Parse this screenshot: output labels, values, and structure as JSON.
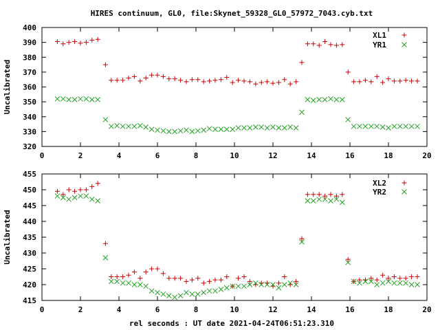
{
  "title": "HIRES continuum, GL0, file:Skynet_59328_GL0_57972_7043.cyb.txt",
  "xlabel": "rel seconds : UT date 2021-04-24T06:51:23.310",
  "colors": {
    "red": "#cc0000",
    "green": "#22a022",
    "axis": "#000000"
  },
  "chart_data": [
    {
      "type": "scatter",
      "ylabel": "Uncalibrated",
      "xlim": [
        0,
        20
      ],
      "ylim": [
        320,
        400
      ],
      "xticks": [
        0,
        2,
        4,
        6,
        8,
        10,
        12,
        14,
        16,
        18,
        20
      ],
      "yticks": [
        320,
        330,
        340,
        350,
        360,
        370,
        380,
        390,
        400
      ],
      "legend_position": "top-right",
      "series": [
        {
          "name": "XL1",
          "marker": "plus",
          "color": "#cc0000",
          "x": [
            0.8,
            1.1,
            1.4,
            1.7,
            2.0,
            2.3,
            2.6,
            2.9,
            3.3,
            3.6,
            3.9,
            4.2,
            4.5,
            4.8,
            5.1,
            5.4,
            5.7,
            6.0,
            6.3,
            6.6,
            6.9,
            7.2,
            7.5,
            7.8,
            8.1,
            8.4,
            8.7,
            9.0,
            9.3,
            9.6,
            9.9,
            10.2,
            10.5,
            10.8,
            11.1,
            11.4,
            11.7,
            12.0,
            12.3,
            12.6,
            12.9,
            13.2,
            13.5,
            13.8,
            14.1,
            14.4,
            14.7,
            15.0,
            15.3,
            15.6,
            15.9,
            16.2,
            16.5,
            16.8,
            17.1,
            17.4,
            17.7,
            18.0,
            18.3,
            18.6,
            18.9,
            19.2,
            19.5
          ],
          "y": [
            390.5,
            389,
            390,
            390.5,
            389.5,
            390,
            391.5,
            392,
            375,
            364.5,
            364.5,
            364.5,
            366,
            367,
            364,
            366,
            368,
            368,
            367,
            365.5,
            365.5,
            364.5,
            363.5,
            365,
            365,
            363.5,
            364,
            364.5,
            365,
            366.5,
            363,
            364.5,
            364,
            363.5,
            362,
            363,
            363.5,
            362.5,
            363,
            365,
            362,
            363.5,
            376.5,
            389,
            389,
            388,
            390.5,
            388.5,
            388,
            388.5,
            370,
            363.5,
            363.5,
            364.5,
            363.5,
            367,
            363,
            365.5,
            364,
            364,
            364.5,
            364,
            364
          ]
        },
        {
          "name": "YR1",
          "marker": "cross",
          "color": "#22a022",
          "x": [
            0.8,
            1.1,
            1.4,
            1.7,
            2.0,
            2.3,
            2.6,
            2.9,
            3.3,
            3.6,
            3.9,
            4.2,
            4.5,
            4.8,
            5.1,
            5.4,
            5.7,
            6.0,
            6.3,
            6.6,
            6.9,
            7.2,
            7.5,
            7.8,
            8.1,
            8.4,
            8.7,
            9.0,
            9.3,
            9.6,
            9.9,
            10.2,
            10.5,
            10.8,
            11.1,
            11.4,
            11.7,
            12.0,
            12.3,
            12.6,
            12.9,
            13.2,
            13.5,
            13.8,
            14.1,
            14.4,
            14.7,
            15.0,
            15.3,
            15.6,
            15.9,
            16.2,
            16.5,
            16.8,
            17.1,
            17.4,
            17.7,
            18.0,
            18.3,
            18.6,
            18.9,
            19.2,
            19.5
          ],
          "y": [
            352,
            352,
            351.5,
            351.5,
            352,
            352,
            351.5,
            351.5,
            338,
            333.5,
            334,
            333.5,
            333.5,
            333.5,
            334,
            333,
            331.5,
            331,
            330.5,
            330,
            330,
            330.5,
            331,
            330,
            330.5,
            331,
            332,
            331.5,
            331.5,
            331.5,
            331.5,
            332.5,
            332.5,
            332.5,
            333,
            333,
            332.5,
            333,
            332.5,
            332.5,
            333,
            332.5,
            343,
            351.5,
            351,
            351.5,
            351.5,
            352,
            351.5,
            351.5,
            338,
            333.5,
            333.5,
            333.5,
            333.5,
            333.5,
            333,
            332.5,
            333.5,
            333.5,
            333.5,
            333.5,
            333.5
          ]
        }
      ]
    },
    {
      "type": "scatter",
      "ylabel": "Uncalibrated",
      "xlim": [
        0,
        20
      ],
      "ylim": [
        415,
        455
      ],
      "xticks": [
        0,
        2,
        4,
        6,
        8,
        10,
        12,
        14,
        16,
        18,
        20
      ],
      "yticks": [
        415,
        420,
        425,
        430,
        435,
        440,
        445,
        450,
        455
      ],
      "legend_position": "top-right",
      "series": [
        {
          "name": "XL2",
          "marker": "plus",
          "color": "#cc0000",
          "x": [
            0.8,
            1.1,
            1.4,
            1.7,
            2.0,
            2.3,
            2.6,
            2.9,
            3.3,
            3.6,
            3.9,
            4.2,
            4.5,
            4.8,
            5.1,
            5.4,
            5.7,
            6.0,
            6.3,
            6.6,
            6.9,
            7.2,
            7.5,
            7.8,
            8.1,
            8.4,
            8.7,
            9.0,
            9.3,
            9.6,
            9.9,
            10.2,
            10.5,
            10.8,
            11.1,
            11.4,
            11.7,
            12.0,
            12.3,
            12.6,
            12.9,
            13.2,
            13.5,
            13.8,
            14.1,
            14.4,
            14.7,
            15.0,
            15.3,
            15.6,
            15.9,
            16.2,
            16.5,
            16.8,
            17.1,
            17.4,
            17.7,
            18.0,
            18.3,
            18.6,
            18.9,
            19.2,
            19.5
          ],
          "y": [
            449.5,
            448.5,
            450,
            449.5,
            450,
            450,
            451,
            452,
            433,
            422.5,
            422.5,
            422.5,
            423,
            424,
            422,
            424,
            425,
            425,
            423.5,
            422,
            422,
            422,
            421,
            421.5,
            422,
            420.5,
            421,
            421.5,
            421.5,
            422.5,
            419.5,
            422,
            422.5,
            421,
            420,
            420.5,
            420.5,
            419.5,
            420.5,
            422.5,
            420,
            421,
            434.5,
            448.5,
            448.5,
            448.5,
            448,
            448.5,
            448,
            448.5,
            428,
            421,
            421.5,
            421.5,
            422,
            421.5,
            423,
            422,
            422.5,
            422,
            422,
            422.5,
            422.5
          ]
        },
        {
          "name": "YR2",
          "marker": "cross",
          "color": "#22a022",
          "x": [
            0.8,
            1.1,
            1.4,
            1.7,
            2.0,
            2.3,
            2.6,
            2.9,
            3.3,
            3.6,
            3.9,
            4.2,
            4.5,
            4.8,
            5.1,
            5.4,
            5.7,
            6.0,
            6.3,
            6.6,
            6.9,
            7.2,
            7.5,
            7.8,
            8.1,
            8.4,
            8.7,
            9.0,
            9.3,
            9.6,
            9.9,
            10.2,
            10.5,
            10.8,
            11.1,
            11.4,
            11.7,
            12.0,
            12.3,
            12.6,
            12.9,
            13.2,
            13.5,
            13.8,
            14.1,
            14.4,
            14.7,
            15.0,
            15.3,
            15.6,
            15.9,
            16.2,
            16.5,
            16.8,
            17.1,
            17.4,
            17.7,
            18.0,
            18.3,
            18.6,
            18.9,
            19.2,
            19.5
          ],
          "y": [
            448,
            447.5,
            447,
            447.5,
            448,
            448,
            447,
            446.5,
            428.5,
            421,
            421,
            420.5,
            420.5,
            420,
            420,
            419.5,
            418,
            417.5,
            417,
            416.5,
            416,
            416.5,
            417.5,
            417,
            417,
            417.5,
            418,
            418,
            418.5,
            419,
            419.5,
            419.5,
            419.5,
            420,
            420.5,
            420,
            420,
            420,
            419,
            420,
            420.5,
            420,
            433.5,
            446.5,
            446.5,
            447,
            447,
            446.5,
            447,
            446,
            427,
            421,
            420.5,
            421,
            421,
            420,
            420.5,
            421,
            420.5,
            420.5,
            420.5,
            420,
            420
          ]
        }
      ]
    }
  ]
}
